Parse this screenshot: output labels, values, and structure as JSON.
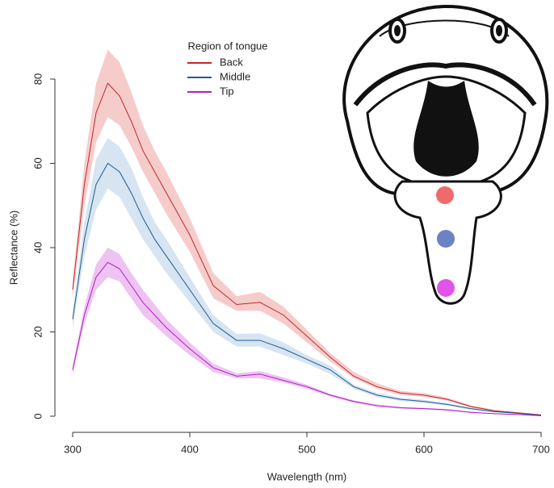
{
  "chart_data": {
    "type": "line",
    "x_label": "Wavelength (nm)",
    "y_label": "Reflectance (%)",
    "legend_title": "Region of tongue",
    "legend": "top",
    "x": [
      300,
      310,
      320,
      330,
      340,
      350,
      360,
      370,
      380,
      400,
      420,
      440,
      460,
      480,
      500,
      520,
      540,
      560,
      580,
      600,
      620,
      640,
      660,
      680,
      700
    ],
    "xlim": [
      300,
      700
    ],
    "xticks": [
      300,
      400,
      500,
      600,
      700
    ],
    "ylim": [
      -2,
      88
    ],
    "yticks": [
      0,
      20,
      40,
      60,
      80
    ],
    "series": [
      {
        "name": "Back",
        "color": "#c0262a",
        "band_color": "#f4c3c2",
        "values": [
          30,
          55,
          72,
          79,
          76,
          70,
          63,
          58,
          53,
          43,
          31,
          26.5,
          27,
          24,
          19,
          14,
          9.5,
          7,
          5.5,
          5,
          4,
          2.3,
          1.3,
          0.8,
          0.3
        ],
        "lower": [
          28,
          50,
          65,
          71,
          69,
          64,
          58,
          53,
          48,
          39,
          28,
          25,
          25,
          22,
          17.5,
          13,
          9,
          6.5,
          5,
          4.6,
          3.7,
          2,
          1.1,
          0.6,
          0.2
        ],
        "upper": [
          32,
          60,
          79,
          87,
          84,
          77,
          69,
          63,
          58,
          47,
          34,
          28.5,
          29.5,
          26,
          20.5,
          15,
          10.5,
          7.8,
          6,
          5.5,
          4.4,
          2.6,
          1.5,
          1,
          0.4
        ]
      },
      {
        "name": "Middle",
        "color": "#1f5a94",
        "band_color": "#cfe0ee",
        "values": [
          23,
          42,
          55,
          60,
          58,
          53,
          47,
          42,
          38,
          30,
          22,
          18,
          18,
          16,
          13.5,
          11,
          7,
          5,
          4,
          3.5,
          2.8,
          1.8,
          1.1,
          0.7,
          0.2
        ],
        "lower": [
          21,
          38,
          49,
          54,
          52,
          47,
          42,
          38,
          34,
          27,
          20,
          16.5,
          16.5,
          14.5,
          12.5,
          10,
          6.5,
          4.5,
          3.6,
          3.1,
          2.5,
          1.5,
          0.9,
          0.5,
          0.1
        ],
        "upper": [
          25,
          46,
          61,
          66,
          64,
          59,
          52,
          46,
          42,
          33,
          24,
          19.5,
          19.7,
          17.5,
          14.5,
          12,
          7.5,
          5.5,
          4.4,
          3.9,
          3.1,
          2,
          1.3,
          0.9,
          0.3
        ]
      },
      {
        "name": "Tip",
        "color": "#b01ec4",
        "band_color": "#ebb8f0",
        "values": [
          11,
          24,
          33,
          36.5,
          35,
          31,
          27,
          24,
          21,
          16,
          11.5,
          9.5,
          10,
          8.5,
          7,
          5,
          3.5,
          2.5,
          2,
          1.8,
          1.5,
          0.9,
          0.6,
          0.4,
          0.1
        ],
        "lower": [
          10,
          22,
          30,
          33,
          32,
          28,
          24,
          21.5,
          19,
          14.5,
          10.5,
          9,
          9,
          8,
          6.5,
          4.7,
          3.2,
          2.2,
          1.8,
          1.6,
          1.3,
          0.8,
          0.5,
          0.3,
          0.1
        ],
        "upper": [
          12,
          26,
          36,
          40,
          38.5,
          34,
          30,
          26.5,
          23,
          17.5,
          12.5,
          10.2,
          10.7,
          9.2,
          7.5,
          5.3,
          3.8,
          2.8,
          2.2,
          2,
          1.7,
          1.1,
          0.7,
          0.5,
          0.2
        ]
      }
    ]
  }
}
